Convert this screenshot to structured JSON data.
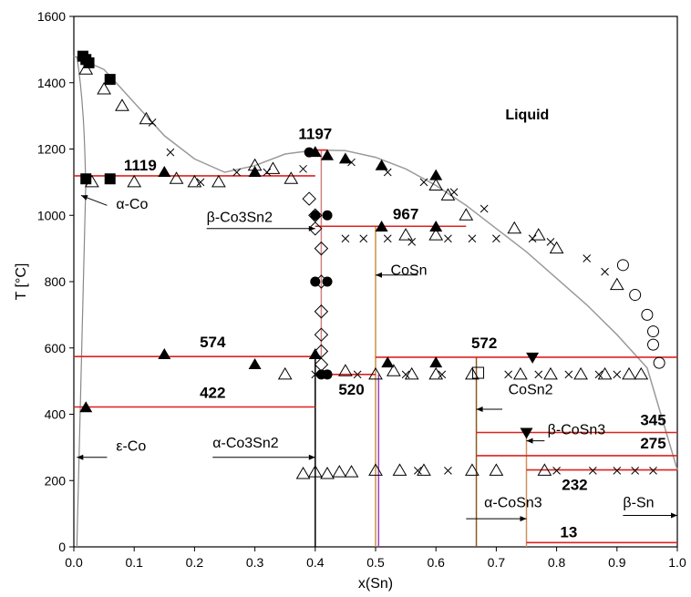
{
  "chart_data": {
    "type": "scatter",
    "title": "",
    "xlabel": "x(Sn)",
    "ylabel": "T [°C]",
    "xlim": [
      0,
      1
    ],
    "ylim": [
      0,
      1600
    ],
    "xticks": [
      "0.0",
      "0.1",
      "0.2",
      "0.3",
      "0.4",
      "0.5",
      "0.6",
      "0.7",
      "0.8",
      "0.9",
      "1.0"
    ],
    "yticks": [
      "0",
      "200",
      "400",
      "600",
      "800",
      "1000",
      "1200",
      "1400",
      "1600"
    ],
    "grid": false,
    "phase_labels": [
      "Liquid",
      "α-Co",
      "β-Co3Sn2",
      "CoSn",
      "ε-Co",
      "α-Co3Sn2",
      "CoSn2",
      "β-CoSn3",
      "α-CoSn3",
      "β-Sn"
    ],
    "isotherms": [
      {
        "T": 1197,
        "label": "1197",
        "x": [
          0.4,
          0.42
        ]
      },
      {
        "T": 1119,
        "label": "1119",
        "x": [
          0.0,
          0.4
        ]
      },
      {
        "T": 967,
        "label": "967",
        "x": [
          0.4,
          0.65
        ]
      },
      {
        "T": 574,
        "label": "574",
        "x": [
          0.0,
          0.4
        ]
      },
      {
        "T": 572,
        "label": "572",
        "x": [
          0.5,
          1.0
        ]
      },
      {
        "T": 520,
        "label": "520",
        "x": [
          0.4,
          0.5
        ]
      },
      {
        "T": 422,
        "label": "422",
        "x": [
          0.0,
          0.4
        ]
      },
      {
        "T": 345,
        "label": "345",
        "x": [
          0.667,
          1.0
        ]
      },
      {
        "T": 275,
        "label": "275",
        "x": [
          0.667,
          1.0
        ]
      },
      {
        "T": 232,
        "label": "232",
        "x": [
          0.75,
          1.0
        ]
      },
      {
        "T": 13,
        "label": "13",
        "x": [
          0.75,
          1.0
        ]
      }
    ],
    "liquidus": [
      [
        0.0,
        1480
      ],
      [
        0.05,
        1440
      ],
      [
        0.1,
        1340
      ],
      [
        0.15,
        1240
      ],
      [
        0.2,
        1170
      ],
      [
        0.25,
        1130
      ],
      [
        0.3,
        1150
      ],
      [
        0.35,
        1185
      ],
      [
        0.4,
        1197
      ],
      [
        0.45,
        1195
      ],
      [
        0.5,
        1175
      ],
      [
        0.55,
        1140
      ],
      [
        0.6,
        1090
      ],
      [
        0.65,
        1030
      ],
      [
        0.7,
        960
      ],
      [
        0.75,
        890
      ],
      [
        0.8,
        810
      ],
      [
        0.85,
        730
      ],
      [
        0.9,
        640
      ],
      [
        0.95,
        540
      ],
      [
        1.0,
        232
      ]
    ],
    "series": [
      {
        "name": "filled squares",
        "marker": "square-filled",
        "points": [
          [
            0.015,
            1480
          ],
          [
            0.02,
            1470
          ],
          [
            0.025,
            1460
          ],
          [
            0.06,
            1410
          ],
          [
            0.02,
            1110
          ],
          [
            0.06,
            1110
          ]
        ]
      },
      {
        "name": "open triangles",
        "marker": "triangle-open",
        "points": [
          [
            0.02,
            1440
          ],
          [
            0.05,
            1380
          ],
          [
            0.08,
            1330
          ],
          [
            0.12,
            1290
          ],
          [
            0.03,
            1100
          ],
          [
            0.1,
            1100
          ],
          [
            0.17,
            1110
          ],
          [
            0.2,
            1100
          ],
          [
            0.24,
            1100
          ],
          [
            0.3,
            1150
          ],
          [
            0.33,
            1140
          ],
          [
            0.36,
            1110
          ],
          [
            0.6,
            1090
          ],
          [
            0.62,
            1060
          ],
          [
            0.65,
            1000
          ],
          [
            0.55,
            940
          ],
          [
            0.6,
            940
          ],
          [
            0.73,
            960
          ],
          [
            0.77,
            940
          ],
          [
            0.8,
            900
          ],
          [
            0.9,
            790
          ],
          [
            0.35,
            520
          ],
          [
            0.45,
            530
          ],
          [
            0.5,
            520
          ],
          [
            0.53,
            530
          ],
          [
            0.56,
            520
          ],
          [
            0.6,
            520
          ],
          [
            0.66,
            520
          ],
          [
            0.74,
            520
          ],
          [
            0.79,
            520
          ],
          [
            0.84,
            520
          ],
          [
            0.88,
            520
          ],
          [
            0.92,
            520
          ],
          [
            0.94,
            520
          ],
          [
            0.38,
            220
          ],
          [
            0.4,
            225
          ],
          [
            0.42,
            220
          ],
          [
            0.44,
            225
          ],
          [
            0.46,
            225
          ],
          [
            0.5,
            230
          ],
          [
            0.54,
            230
          ],
          [
            0.58,
            230
          ],
          [
            0.66,
            230
          ],
          [
            0.7,
            230
          ],
          [
            0.78,
            230
          ]
        ]
      },
      {
        "name": "crosses",
        "marker": "cross",
        "points": [
          [
            0.13,
            1280
          ],
          [
            0.16,
            1190
          ],
          [
            0.21,
            1100
          ],
          [
            0.27,
            1130
          ],
          [
            0.32,
            1130
          ],
          [
            0.38,
            1140
          ],
          [
            0.46,
            1160
          ],
          [
            0.52,
            1130
          ],
          [
            0.58,
            1100
          ],
          [
            0.63,
            1070
          ],
          [
            0.68,
            1020
          ],
          [
            0.45,
            930
          ],
          [
            0.48,
            930
          ],
          [
            0.52,
            930
          ],
          [
            0.56,
            920
          ],
          [
            0.62,
            930
          ],
          [
            0.66,
            930
          ],
          [
            0.7,
            930
          ],
          [
            0.76,
            930
          ],
          [
            0.79,
            920
          ],
          [
            0.85,
            870
          ],
          [
            0.88,
            830
          ],
          [
            0.4,
            520
          ],
          [
            0.42,
            520
          ],
          [
            0.47,
            520
          ],
          [
            0.55,
            520
          ],
          [
            0.61,
            520
          ],
          [
            0.72,
            520
          ],
          [
            0.77,
            520
          ],
          [
            0.82,
            520
          ],
          [
            0.87,
            520
          ],
          [
            0.9,
            520
          ],
          [
            0.57,
            230
          ],
          [
            0.62,
            230
          ],
          [
            0.8,
            230
          ],
          [
            0.86,
            230
          ],
          [
            0.9,
            230
          ],
          [
            0.93,
            230
          ],
          [
            0.96,
            230
          ]
        ]
      },
      {
        "name": "filled triangles",
        "marker": "triangle-filled",
        "points": [
          [
            0.15,
            1130
          ],
          [
            0.3,
            1130
          ],
          [
            0.4,
            1190
          ],
          [
            0.42,
            1180
          ],
          [
            0.45,
            1170
          ],
          [
            0.51,
            1150
          ],
          [
            0.6,
            1120
          ],
          [
            0.51,
            965
          ],
          [
            0.6,
            965
          ],
          [
            0.15,
            580
          ],
          [
            0.3,
            550
          ],
          [
            0.4,
            580
          ],
          [
            0.52,
            555
          ],
          [
            0.6,
            555
          ],
          [
            0.02,
            420
          ]
        ]
      },
      {
        "name": "filled triangles down",
        "marker": "triangle-down-filled",
        "points": [
          [
            0.76,
            572
          ],
          [
            0.75,
            345
          ]
        ]
      },
      {
        "name": "open diamonds",
        "marker": "diamond-open",
        "points": [
          [
            0.39,
            1050
          ],
          [
            0.4,
            1000
          ],
          [
            0.4,
            960
          ],
          [
            0.41,
            900
          ],
          [
            0.41,
            800
          ],
          [
            0.41,
            710
          ],
          [
            0.41,
            640
          ],
          [
            0.41,
            590
          ],
          [
            0.41,
            550
          ]
        ]
      },
      {
        "name": "filled circles",
        "marker": "circle-filled",
        "points": [
          [
            0.39,
            1190
          ],
          [
            0.4,
            1000
          ],
          [
            0.42,
            1000
          ],
          [
            0.4,
            800
          ],
          [
            0.42,
            800
          ],
          [
            0.41,
            520
          ],
          [
            0.42,
            520
          ]
        ]
      },
      {
        "name": "open circles",
        "marker": "circle-open",
        "points": [
          [
            0.91,
            850
          ],
          [
            0.93,
            760
          ],
          [
            0.95,
            700
          ],
          [
            0.96,
            650
          ],
          [
            0.96,
            610
          ],
          [
            0.97,
            555
          ]
        ]
      },
      {
        "name": "open squares",
        "marker": "square-open",
        "points": [
          [
            0.67,
            525
          ]
        ]
      }
    ]
  }
}
